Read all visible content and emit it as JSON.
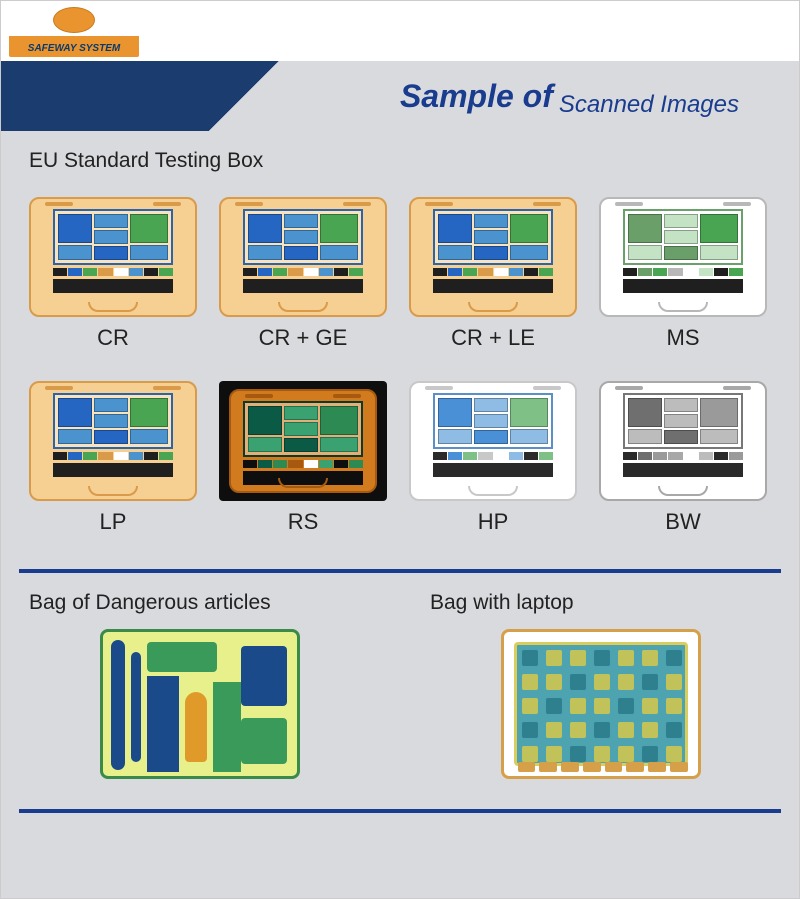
{
  "brand": "SAFEWAY SYSTEM",
  "title": {
    "a": "Sample of",
    "b": "Scanned Images"
  },
  "section1": "EU Standard Testing Box",
  "modes": [
    {
      "code": "CR",
      "case_bg": "#f6cf93",
      "case_border": "#d99a4a",
      "screen_border": "#2b64a8",
      "big": "#2466c2",
      "mid": "#4a93cf",
      "green": "#4aa552",
      "dark": "#1f1f1f",
      "handle": "#d99a4a",
      "outer_bg": "transparent"
    },
    {
      "code": "CR + GE",
      "case_bg": "#f6cf93",
      "case_border": "#d99a4a",
      "screen_border": "#2b64a8",
      "big": "#2466c2",
      "mid": "#4a93cf",
      "green": "#4aa552",
      "dark": "#1f1f1f",
      "handle": "#d99a4a",
      "outer_bg": "transparent"
    },
    {
      "code": "CR + LE",
      "case_bg": "#f6cf93",
      "case_border": "#d99a4a",
      "screen_border": "#2b64a8",
      "big": "#2466c2",
      "mid": "#4a93cf",
      "green": "#4aa552",
      "dark": "#1f1f1f",
      "handle": "#d99a4a",
      "outer_bg": "transparent"
    },
    {
      "code": "MS",
      "case_bg": "#ffffff",
      "case_border": "#b8b8b8",
      "screen_border": "#6aa06a",
      "big": "#6a9f6a",
      "mid": "#c4e2c4",
      "green": "#4aa552",
      "dark": "#1f1f1f",
      "handle": "#b8b8b8",
      "outer_bg": "transparent"
    },
    {
      "code": "LP",
      "case_bg": "#f6cf93",
      "case_border": "#d99a4a",
      "screen_border": "#2b64a8",
      "big": "#2466c2",
      "mid": "#4a93cf",
      "green": "#4aa552",
      "dark": "#1f1f1f",
      "handle": "#d99a4a",
      "outer_bg": "transparent"
    },
    {
      "code": "RS",
      "case_bg": "#d17a1e",
      "case_border": "#a65a10",
      "screen_border": "#0b3a2a",
      "big": "#0b5a46",
      "mid": "#3aa270",
      "green": "#2c8a52",
      "dark": "#0e0e0e",
      "handle": "#a65a10",
      "outer_bg": "#0e0e0e"
    },
    {
      "code": "HP",
      "case_bg": "#ffffff",
      "case_border": "#c8c8c8",
      "screen_border": "#5a8fc8",
      "big": "#4a90d6",
      "mid": "#8fbce4",
      "green": "#7fc086",
      "dark": "#2a2a2a",
      "handle": "#c8c8c8",
      "outer_bg": "transparent"
    },
    {
      "code": "BW",
      "case_bg": "#ffffff",
      "case_border": "#a8a8a8",
      "screen_border": "#777777",
      "big": "#6f6f6f",
      "mid": "#bcbcbc",
      "green": "#9a9a9a",
      "dark": "#2a2a2a",
      "handle": "#a8a8a8",
      "outer_bg": "transparent"
    }
  ],
  "bottom": {
    "a_title": "Bag of Dangerous articles",
    "b_title": "Bag with laptop",
    "a": {
      "bg": "#e7f08a",
      "border": "#3a8a4a",
      "accent1": "#1a4a8a",
      "accent2": "#e09a2a",
      "accent3": "#3a9a5a"
    },
    "b": {
      "bg": "#ffffff",
      "border": "#d6a04a",
      "board": "#3a9aa8",
      "trace": "#d6c84a",
      "chip": "#2a7a8a"
    }
  },
  "colors": {
    "banner_dark": "#1a3c6e",
    "banner_text": "#1a3c8e",
    "page_bg": "#d9dadd"
  }
}
